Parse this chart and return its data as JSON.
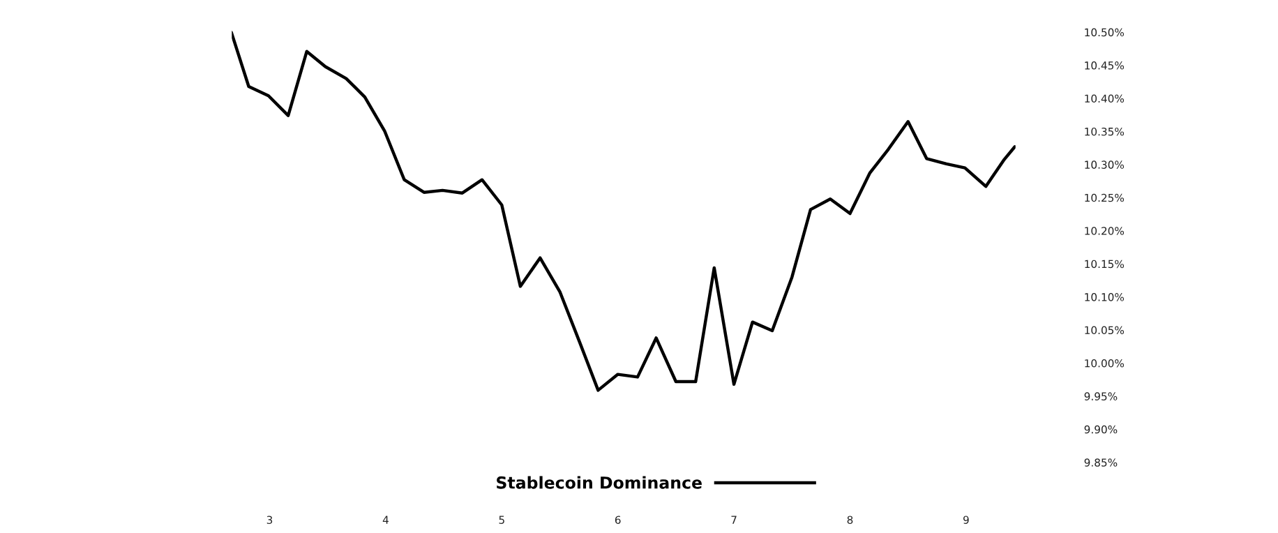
{
  "chart_data": {
    "type": "line",
    "x": [
      2.67,
      2.82,
      2.99,
      3.16,
      3.32,
      3.48,
      3.66,
      3.82,
      3.99,
      4.16,
      4.33,
      4.49,
      4.66,
      4.83,
      5.0,
      5.16,
      5.33,
      5.5,
      5.67,
      5.83,
      6.0,
      6.17,
      6.33,
      6.5,
      6.67,
      6.83,
      7.0,
      7.16,
      7.33,
      7.5,
      7.66,
      7.83,
      8.0,
      8.17,
      8.33,
      8.5,
      8.66,
      8.83,
      8.99,
      9.17,
      9.33,
      9.42
    ],
    "series": [
      {
        "name": "Stablecoin Dominance",
        "color": "#000000",
        "values": [
          10.5,
          10.418,
          10.404,
          10.374,
          10.471,
          10.448,
          10.43,
          10.402,
          10.351,
          10.277,
          10.258,
          10.261,
          10.257,
          10.277,
          10.239,
          10.116,
          10.159,
          10.108,
          10.032,
          9.959,
          9.983,
          9.979,
          10.038,
          9.972,
          9.972,
          10.144,
          9.968,
          10.062,
          10.049,
          10.13,
          10.232,
          10.248,
          10.226,
          10.287,
          10.323,
          10.365,
          10.309,
          10.301,
          10.295,
          10.267,
          10.308,
          10.327
        ]
      }
    ],
    "xlim": [
      2.67,
      9.43
    ],
    "xticks": [
      3,
      4,
      5,
      6,
      7,
      8,
      9
    ],
    "ylim": [
      9.79,
      10.51
    ],
    "yticks": [
      {
        "value": 9.85,
        "label": "9.85%"
      },
      {
        "value": 9.9,
        "label": "9.90%"
      },
      {
        "value": 9.95,
        "label": "9.95%"
      },
      {
        "value": 10.0,
        "label": "10.00%"
      },
      {
        "value": 10.05,
        "label": "10.05%"
      },
      {
        "value": 10.1,
        "label": "10.10%"
      },
      {
        "value": 10.15,
        "label": "10.15%"
      },
      {
        "value": 10.2,
        "label": "10.20%"
      },
      {
        "value": 10.25,
        "label": "10.25%"
      },
      {
        "value": 10.3,
        "label": "10.30%"
      },
      {
        "value": 10.35,
        "label": "10.35%"
      },
      {
        "value": 10.4,
        "label": "10.40%"
      },
      {
        "value": 10.45,
        "label": "10.45%"
      },
      {
        "value": 10.5,
        "label": "10.50%"
      }
    ],
    "grid": false,
    "legend": "bottom",
    "marker": "none",
    "line_style": "solid"
  }
}
